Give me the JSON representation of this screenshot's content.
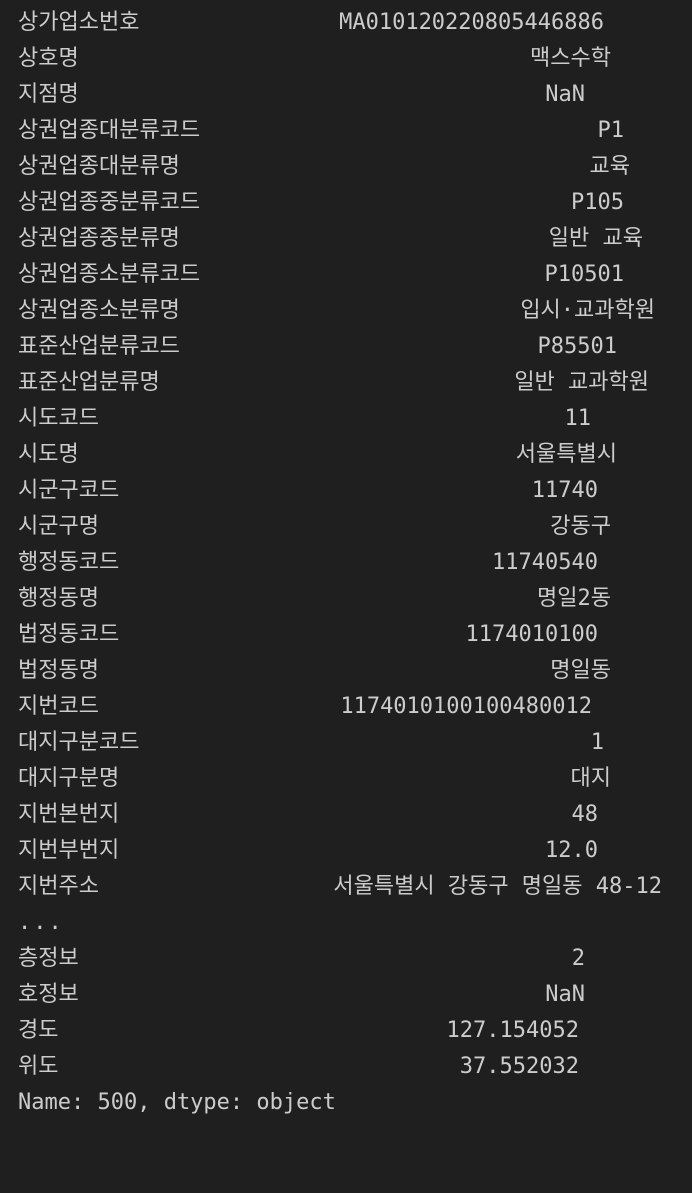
{
  "series": [
    {
      "key": "상가업소번호",
      "value": "MA010120220805446886"
    },
    {
      "key": "상호명",
      "value": "맥스수학"
    },
    {
      "key": "지점명",
      "value": "NaN"
    },
    {
      "key": "상권업종대분류코드",
      "value": "P1"
    },
    {
      "key": "상권업종대분류명",
      "value": "교육"
    },
    {
      "key": "상권업종중분류코드",
      "value": "P105"
    },
    {
      "key": "상권업종중분류명",
      "value": "일반 교육"
    },
    {
      "key": "상권업종소분류코드",
      "value": "P10501"
    },
    {
      "key": "상권업종소분류명",
      "value": "입시·교과학원"
    },
    {
      "key": "표준산업분류코드",
      "value": "P85501"
    },
    {
      "key": "표준산업분류명",
      "value": "일반 교과학원"
    },
    {
      "key": "시도코드",
      "value": "11"
    },
    {
      "key": "시도명",
      "value": "서울특별시"
    },
    {
      "key": "시군구코드",
      "value": "11740"
    },
    {
      "key": "시군구명",
      "value": "강동구"
    },
    {
      "key": "행정동코드",
      "value": "11740540"
    },
    {
      "key": "행정동명",
      "value": "명일2동"
    },
    {
      "key": "법정동코드",
      "value": "1174010100"
    },
    {
      "key": "법정동명",
      "value": "명일동"
    },
    {
      "key": "지번코드",
      "value": "1174010100100480012"
    },
    {
      "key": "대지구분코드",
      "value": "1"
    },
    {
      "key": "대지구분명",
      "value": "대지"
    },
    {
      "key": "지번본번지",
      "value": "48"
    },
    {
      "key": "지번부번지",
      "value": "12.0"
    },
    {
      "key": "지번주소",
      "value": "서울특별시 강동구 명일동 48-12"
    }
  ],
  "ellipsis": "...",
  "series_tail": [
    {
      "key": "층정보",
      "value": "2"
    },
    {
      "key": "호정보",
      "value": "NaN"
    },
    {
      "key": "경도",
      "value": "127.154052"
    },
    {
      "key": "위도",
      "value": "37.552032"
    }
  ],
  "footer": "Name: 500, dtype: object"
}
